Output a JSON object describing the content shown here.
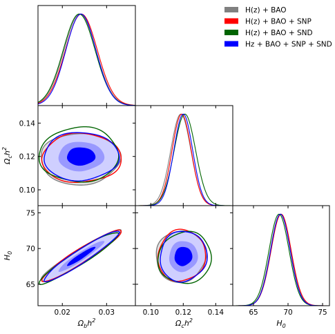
{
  "chart_data": {
    "type": "triangle-corner-plot",
    "parameters": [
      "omega_b",
      "omega_c",
      "H0"
    ],
    "axis_labels": {
      "omega_b": "Ω_b h^2",
      "omega_c": "Ω_c h^2",
      "H0": "H_0"
    },
    "ranges": {
      "omega_b": [
        0.0145,
        0.0365
      ],
      "omega_c": [
        0.0905,
        0.1505
      ],
      "H0": [
        62.0,
        76.0
      ]
    },
    "ticks": {
      "omega_b": [
        0.02,
        0.03
      ],
      "omega_c_x": [
        0.1,
        0.12,
        0.14
      ],
      "omega_c_y": [
        0.1,
        0.12,
        0.14
      ],
      "H0_x": [
        65,
        70,
        75
      ],
      "H0_y": [
        65,
        70,
        75
      ]
    },
    "tick_labels": {
      "omega_b": [
        "0.02",
        "0.03"
      ],
      "omega_c_x": [
        "0.10",
        "0.12",
        "0.14"
      ],
      "omega_c_y": [
        "0.10",
        "0.12",
        "0.14"
      ],
      "H0_x": [
        "65",
        "70",
        "75"
      ],
      "H0_y": [
        "65",
        "70",
        "75"
      ]
    },
    "legend_position": "top-right",
    "series": [
      {
        "name": "H(z) + BAO",
        "color": "#808080",
        "mean": {
          "omega_b": 0.024,
          "omega_c": 0.1185,
          "H0": 68.9
        },
        "sigma": {
          "omega_b": 0.0036,
          "omega_c": 0.0062,
          "H0": 1.45
        },
        "rho": {
          "bc": 0.02,
          "bH": 0.95,
          "cH": 0.05
        }
      },
      {
        "name": "H(z) + BAO + SNP",
        "color": "#ff0000",
        "mean": {
          "omega_b": 0.0243,
          "omega_c": 0.119,
          "H0": 69.0
        },
        "sigma": {
          "omega_b": 0.0036,
          "omega_c": 0.0059,
          "H0": 1.45
        },
        "rho": {
          "bc": 0.02,
          "bH": 0.95,
          "cH": 0.05
        }
      },
      {
        "name": "H(z) + BAO + SND",
        "color": "#006400",
        "mean": {
          "omega_b": 0.0238,
          "omega_c": 0.121,
          "H0": 68.7
        },
        "sigma": {
          "omega_b": 0.0036,
          "omega_c": 0.0066,
          "H0": 1.45
        },
        "rho": {
          "bc": 0.02,
          "bH": 0.95,
          "cH": 0.05
        }
      },
      {
        "name": "Hz + BAO + SNP + SND",
        "color": "#0000ff",
        "mean": {
          "omega_b": 0.0242,
          "omega_c": 0.12,
          "H0": 68.9
        },
        "sigma": {
          "omega_b": 0.0034,
          "omega_c": 0.0058,
          "H0": 1.42
        },
        "rho": {
          "bc": 0.02,
          "bH": 0.95,
          "cH": 0.05
        }
      }
    ]
  }
}
